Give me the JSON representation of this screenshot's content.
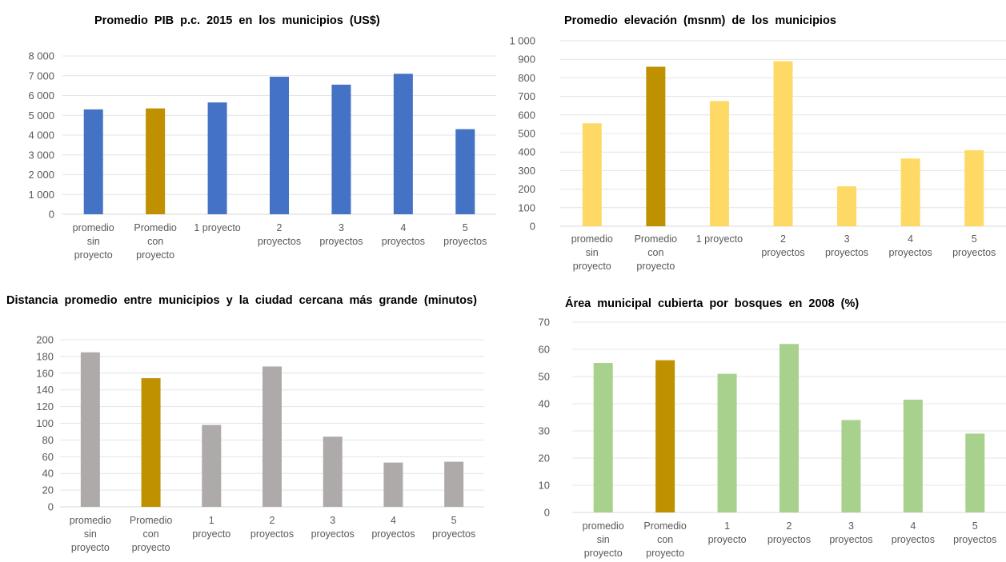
{
  "charts": {
    "pib": {
      "title": "Promedio  PIB p.c. 2015  en los municipios  (US$)"
    },
    "elev": {
      "title": "Promedio  elevación  (msnm)  de los municipios"
    },
    "dist": {
      "title": "Distancia  promedio  entre municipios  y la ciudad  cercana  más grande  (minutos)"
    },
    "forest": {
      "title": "Área municipal  cubierta  por bosques  en 2008  (%)"
    }
  },
  "chart_data": [
    {
      "type": "bar",
      "title": "Promedio  PIB p.c. 2015  en los municipios  (US$)",
      "categories": [
        "promedio sin proyecto",
        "Promedio con proyecto",
        "1 proyecto",
        "2 proyectos",
        "3 proyectos",
        "4 proyectos",
        "5 proyectos"
      ],
      "category_lines": [
        [
          "promedio",
          "sin",
          "proyecto"
        ],
        [
          "Promedio",
          "con",
          "proyecto"
        ],
        [
          "1 proyecto"
        ],
        [
          "2",
          "proyectos"
        ],
        [
          "3",
          "proyectos"
        ],
        [
          "4",
          "proyectos"
        ],
        [
          "5",
          "proyectos"
        ]
      ],
      "values": [
        5300,
        5350,
        5650,
        6950,
        6550,
        7100,
        4300
      ],
      "ylim": [
        0,
        8000
      ],
      "yticks": [
        0,
        1000,
        2000,
        3000,
        4000,
        5000,
        6000,
        7000,
        8000
      ],
      "ytick_labels": [
        "0",
        "1 000",
        "2 000",
        "3 000",
        "4 000",
        "5 000",
        "6 000",
        "7 000",
        "8 000"
      ],
      "colors": [
        "#4472c4",
        "#bf9000",
        "#4472c4",
        "#4472c4",
        "#4472c4",
        "#4472c4",
        "#4472c4"
      ],
      "grid": true
    },
    {
      "type": "bar",
      "title": "Promedio  elevación  (msnm)  de los municipios",
      "categories": [
        "promedio sin proyecto",
        "Promedio con proyecto",
        "1 proyecto",
        "2 proyectos",
        "3 proyectos",
        "4 proyectos",
        "5 proyectos"
      ],
      "category_lines": [
        [
          "promedio",
          "sin",
          "proyecto"
        ],
        [
          "Promedio",
          "con",
          "proyecto"
        ],
        [
          "1 proyecto"
        ],
        [
          "2",
          "proyectos"
        ],
        [
          "3",
          "proyectos"
        ],
        [
          "4",
          "proyectos"
        ],
        [
          "5",
          "proyectos"
        ]
      ],
      "values": [
        555,
        860,
        675,
        890,
        215,
        365,
        410
      ],
      "ylim": [
        0,
        1000
      ],
      "yticks": [
        0,
        100,
        200,
        300,
        400,
        500,
        600,
        700,
        800,
        900,
        1000
      ],
      "ytick_labels": [
        "0",
        "100",
        "200",
        "300",
        "400",
        "500",
        "600",
        "700",
        "800",
        "900",
        "1 000"
      ],
      "colors": [
        "#ffd966",
        "#bf9000",
        "#ffd966",
        "#ffd966",
        "#ffd966",
        "#ffd966",
        "#ffd966"
      ],
      "grid": true
    },
    {
      "type": "bar",
      "title": "Distancia  promedio  entre municipios  y la ciudad  cercana  más grande  (minutos)",
      "categories": [
        "promedio sin proyecto",
        "Promedio con proyecto",
        "1 proyecto",
        "2 proyectos",
        "3 proyectos",
        "4 proyectos",
        "5 proyectos"
      ],
      "category_lines": [
        [
          "promedio",
          "sin",
          "proyecto"
        ],
        [
          "Promedio",
          "con",
          "proyecto"
        ],
        [
          "1",
          "proyecto"
        ],
        [
          "2",
          "proyectos"
        ],
        [
          "3",
          "proyectos"
        ],
        [
          "4",
          "proyectos"
        ],
        [
          "5",
          "proyectos"
        ]
      ],
      "values": [
        185,
        154,
        98,
        168,
        84,
        53,
        54
      ],
      "ylim": [
        0,
        200
      ],
      "yticks": [
        0,
        20,
        40,
        60,
        80,
        100,
        120,
        140,
        160,
        180,
        200
      ],
      "ytick_labels": [
        "0",
        "20",
        "40",
        "60",
        "80",
        "100",
        "120",
        "140",
        "160",
        "180",
        "200"
      ],
      "colors": [
        "#aeaaaa",
        "#bf9000",
        "#aeaaaa",
        "#aeaaaa",
        "#aeaaaa",
        "#aeaaaa",
        "#aeaaaa"
      ],
      "grid": true
    },
    {
      "type": "bar",
      "title": "Área municipal  cubierta  por bosques  en 2008  (%)",
      "categories": [
        "promedio sin proyecto",
        "Promedio con proyecto",
        "1 proyecto",
        "2 proyectos",
        "3 proyectos",
        "4 proyectos",
        "5 proyectos"
      ],
      "category_lines": [
        [
          "promedio",
          "sin",
          "proyecto"
        ],
        [
          "Promedio",
          "con",
          "proyecto"
        ],
        [
          "1",
          "proyecto"
        ],
        [
          "2",
          "proyectos"
        ],
        [
          "3",
          "proyectos"
        ],
        [
          "4",
          "proyectos"
        ],
        [
          "5",
          "proyectos"
        ]
      ],
      "values": [
        55,
        56,
        51,
        62,
        34,
        41.5,
        29
      ],
      "ylim": [
        0,
        70
      ],
      "yticks": [
        0,
        10,
        20,
        30,
        40,
        50,
        60,
        70
      ],
      "ytick_labels": [
        "0",
        "10",
        "20",
        "30",
        "40",
        "50",
        "60",
        "70"
      ],
      "colors": [
        "#a9d18e",
        "#bf9000",
        "#a9d18e",
        "#a9d18e",
        "#a9d18e",
        "#a9d18e",
        "#a9d18e"
      ],
      "grid": true
    }
  ]
}
